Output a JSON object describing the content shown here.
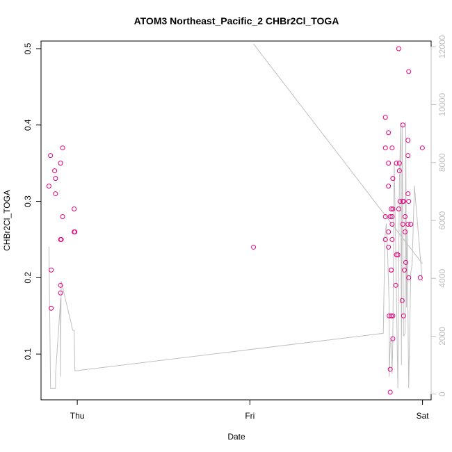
{
  "chart_data": {
    "type": "scatter",
    "title": "ATOM3 Northeast_Pacific_2 CHBr2Cl_TOGA",
    "xlabel": "Date",
    "ylabel": "CHBr2Cl_TOGA",
    "x_ticks": [
      {
        "label": "Thu",
        "value": 1.0
      },
      {
        "label": "Fri",
        "value": 2.0
      },
      {
        "label": "Sat",
        "value": 3.0
      }
    ],
    "xlim": [
      0.79,
      3.05
    ],
    "y_ticks": [
      0.1,
      0.2,
      0.3,
      0.4,
      0.5
    ],
    "ylim": [
      0.04,
      0.51
    ],
    "y2_ticks": [
      0,
      2000,
      4000,
      6000,
      8000,
      10000,
      12000
    ],
    "y2lim": [
      -200,
      12200
    ],
    "colors": {
      "points": "#e6007e",
      "line": "#c0c0c0",
      "right_axis": "#bebebe",
      "axis": "#000000"
    },
    "series": [
      {
        "type": "scatter",
        "axis": "left",
        "points": [
          [
            0.836,
            0.32
          ],
          [
            0.845,
            0.36
          ],
          [
            0.849,
            0.21
          ],
          [
            0.849,
            0.16
          ],
          [
            0.869,
            0.34
          ],
          [
            0.874,
            0.31
          ],
          [
            0.874,
            0.33
          ],
          [
            0.903,
            0.25
          ],
          [
            0.903,
            0.35
          ],
          [
            0.903,
            0.19
          ],
          [
            0.903,
            0.18
          ],
          [
            0.907,
            0.25
          ],
          [
            0.915,
            0.28
          ],
          [
            0.915,
            0.37
          ],
          [
            0.982,
            0.26
          ],
          [
            0.982,
            0.29
          ],
          [
            0.986,
            0.26
          ],
          [
            2.021,
            0.24
          ],
          [
            2.785,
            0.41
          ],
          [
            2.785,
            0.37
          ],
          [
            2.785,
            0.28
          ],
          [
            2.785,
            0.25
          ],
          [
            2.803,
            0.39
          ],
          [
            2.803,
            0.35
          ],
          [
            2.803,
            0.32
          ],
          [
            2.803,
            0.26
          ],
          [
            2.803,
            0.24
          ],
          [
            2.807,
            0.15
          ],
          [
            2.813,
            0.05
          ],
          [
            2.813,
            0.08
          ],
          [
            2.813,
            0.28
          ],
          [
            2.819,
            0.29
          ],
          [
            2.819,
            0.21
          ],
          [
            2.819,
            0.21
          ],
          [
            2.819,
            0.15
          ],
          [
            2.824,
            0.37
          ],
          [
            2.824,
            0.27
          ],
          [
            2.824,
            0.25
          ],
          [
            2.824,
            0.28
          ],
          [
            2.828,
            0.29
          ],
          [
            2.828,
            0.33
          ],
          [
            2.828,
            0.12
          ],
          [
            2.828,
            0.15
          ],
          [
            2.845,
            0.19
          ],
          [
            2.849,
            0.35
          ],
          [
            2.849,
            0.23
          ],
          [
            2.857,
            0.23
          ],
          [
            2.862,
            0.29
          ],
          [
            2.862,
            0.5
          ],
          [
            2.866,
            0.34
          ],
          [
            2.866,
            0.35
          ],
          [
            2.87,
            0.3
          ],
          [
            2.882,
            0.17
          ],
          [
            2.886,
            0.4
          ],
          [
            2.886,
            0.3
          ],
          [
            2.886,
            0.27
          ],
          [
            2.89,
            0.15
          ],
          [
            2.89,
            0.3
          ],
          [
            2.895,
            0.21
          ],
          [
            2.899,
            0.26
          ],
          [
            2.899,
            0.28
          ],
          [
            2.903,
            0.22
          ],
          [
            2.916,
            0.38
          ],
          [
            2.916,
            0.27
          ],
          [
            2.916,
            0.31
          ],
          [
            2.916,
            0.36
          ],
          [
            2.92,
            0.2
          ],
          [
            2.92,
            0.47
          ],
          [
            2.92,
            0.3
          ],
          [
            2.932,
            0.27
          ],
          [
            2.987,
            0.2
          ],
          [
            2.999,
            0.37
          ]
        ]
      },
      {
        "type": "line",
        "axis": "right",
        "points": [
          [
            0.836,
            5100
          ],
          [
            0.845,
            200
          ],
          [
            0.874,
            200
          ],
          [
            0.874,
            700
          ],
          [
            0.899,
            2900
          ],
          [
            0.903,
            3300
          ],
          [
            0.903,
            600
          ],
          [
            0.907,
            3900
          ],
          [
            0.974,
            2200
          ],
          [
            0.982,
            2200
          ],
          [
            0.986,
            800
          ],
          [
            2.773,
            2100
          ],
          [
            2.782,
            5400
          ],
          [
            2.79,
            5900
          ],
          [
            2.798,
            4900
          ],
          [
            2.807,
            3000
          ],
          [
            2.807,
            600
          ],
          [
            2.813,
            1800
          ],
          [
            2.819,
            1900
          ],
          [
            2.824,
            700
          ],
          [
            2.828,
            1900
          ],
          [
            2.836,
            8000
          ],
          [
            2.845,
            5000
          ],
          [
            2.849,
            3400
          ],
          [
            2.857,
            200
          ],
          [
            2.866,
            7300
          ],
          [
            2.874,
            9400
          ],
          [
            2.878,
            1000
          ],
          [
            2.882,
            9300
          ],
          [
            2.89,
            2000
          ],
          [
            2.899,
            2100
          ],
          [
            2.903,
            9400
          ],
          [
            2.907,
            3000
          ],
          [
            2.911,
            5700
          ],
          [
            2.92,
            200
          ],
          [
            2.932,
            4200
          ],
          [
            2.94,
            4500
          ],
          [
            2.953,
            7200
          ],
          [
            2.999,
            3900
          ]
        ]
      },
      {
        "type": "line",
        "axis": "right",
        "points": [
          [
            2.021,
            12100
          ],
          [
            3.0,
            4500
          ]
        ]
      }
    ]
  }
}
